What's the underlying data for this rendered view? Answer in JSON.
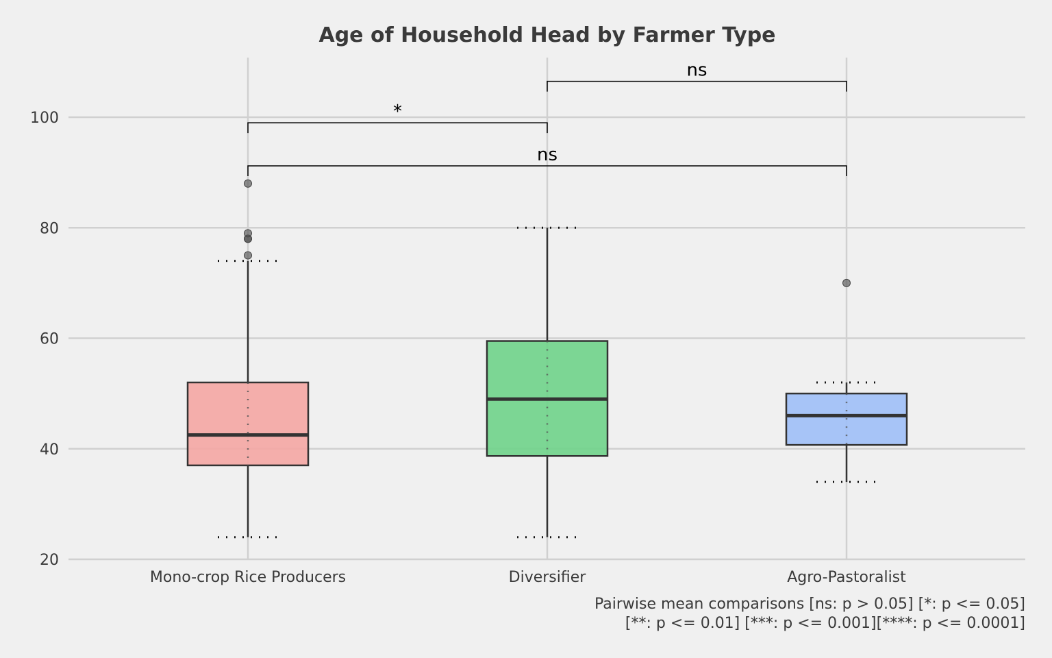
{
  "chart_data": {
    "type": "box",
    "title": "Age of Household Head by Farmer Type",
    "xlabel": "",
    "ylabel": "",
    "ylim": [
      20,
      110
    ],
    "yticks": [
      20,
      40,
      60,
      80,
      100
    ],
    "grid": true,
    "categories": [
      "Mono-crop Rice Producers",
      "Diversifier",
      "Agro-Pastoralist"
    ],
    "boxes": [
      {
        "category": "Mono-crop Rice Producers",
        "color": "#f4a6a3",
        "q1": 37,
        "median": 42.5,
        "q3": 52,
        "whisker_low": 24,
        "whisker_high": 74,
        "outliers": [
          75,
          78,
          78,
          79,
          88
        ]
      },
      {
        "category": "Diversifier",
        "color": "#6fd38a",
        "q1": 38.7,
        "median": 49,
        "q3": 59.5,
        "whisker_low": 24,
        "whisker_high": 80,
        "outliers": []
      },
      {
        "category": "Agro-Pastoralist",
        "color": "#9fbff7",
        "q1": 40.7,
        "median": 46,
        "q3": 50,
        "whisker_low": 34,
        "whisker_high": 52,
        "outliers": [
          70
        ]
      }
    ],
    "comparisons": [
      {
        "from": 0,
        "to": 1,
        "y": 99,
        "label": "*"
      },
      {
        "from": 0,
        "to": 2,
        "y": 91.2,
        "label": "ns"
      },
      {
        "from": 1,
        "to": 2,
        "y": 106.5,
        "label": "ns"
      }
    ],
    "footnote": [
      "Pairwise mean comparisons [ns: p > 0.05] [*: p <= 0.05]",
      "[**: p <= 0.01] [***: p <= 0.001][****: p <= 0.0001]"
    ]
  }
}
